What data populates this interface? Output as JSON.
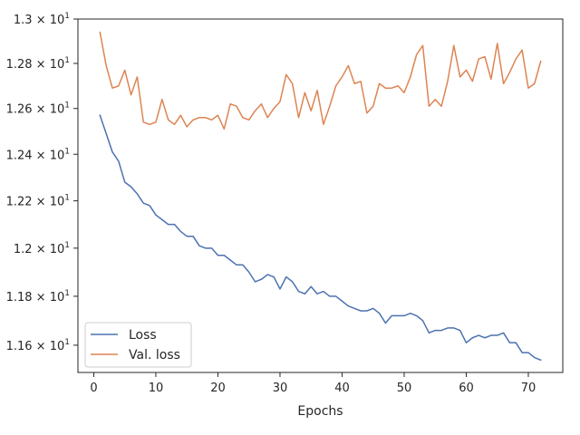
{
  "chart_data": {
    "type": "line",
    "title": "",
    "xlabel": "Epochs",
    "ylabel": "",
    "yscale": "log",
    "xlim": [
      -2.55,
      75.55
    ],
    "ylim": [
      11.49,
      13.0
    ],
    "grid": false,
    "legend_placement": "lower-left",
    "x_ticks": [
      0,
      10,
      20,
      30,
      40,
      50,
      60,
      70
    ],
    "x_tick_labels": [
      "0",
      "10",
      "20",
      "30",
      "40",
      "50",
      "60",
      "70"
    ],
    "y_ticks": [
      {
        "value": 11.6,
        "mantissa": "1.16"
      },
      {
        "value": 11.8,
        "mantissa": "1.18"
      },
      {
        "value": 12.0,
        "mantissa": "1.2"
      },
      {
        "value": 12.2,
        "mantissa": "1.22"
      },
      {
        "value": 12.4,
        "mantissa": "1.24"
      },
      {
        "value": 12.6,
        "mantissa": "1.26"
      },
      {
        "value": 12.8,
        "mantissa": "1.28"
      },
      {
        "value": 13.0,
        "mantissa": "1.3"
      }
    ],
    "y_tick_multiplier": "× 10",
    "y_tick_exponent": "1",
    "x": [
      1,
      2,
      3,
      4,
      5,
      6,
      7,
      8,
      9,
      10,
      11,
      12,
      13,
      14,
      15,
      16,
      17,
      18,
      19,
      20,
      21,
      22,
      23,
      24,
      25,
      26,
      27,
      28,
      29,
      30,
      31,
      32,
      33,
      34,
      35,
      36,
      37,
      38,
      39,
      40,
      41,
      42,
      43,
      44,
      45,
      46,
      47,
      48,
      49,
      50,
      51,
      52,
      53,
      54,
      55,
      56,
      57,
      58,
      59,
      60,
      61,
      62,
      63,
      64,
      65,
      66,
      67,
      68,
      69,
      70,
      71,
      72
    ],
    "series": [
      {
        "name": "Loss",
        "color": "#4c72b0",
        "values": [
          12.57,
          12.49,
          12.41,
          12.37,
          12.28,
          12.26,
          12.23,
          12.19,
          12.18,
          12.14,
          12.12,
          12.1,
          12.1,
          12.07,
          12.05,
          12.05,
          12.01,
          12.0,
          12.0,
          11.97,
          11.97,
          11.95,
          11.93,
          11.93,
          11.9,
          11.86,
          11.87,
          11.89,
          11.88,
          11.83,
          11.88,
          11.86,
          11.82,
          11.81,
          11.84,
          11.81,
          11.82,
          11.8,
          11.8,
          11.78,
          11.76,
          11.75,
          11.74,
          11.74,
          11.75,
          11.73,
          11.69,
          11.72,
          11.72,
          11.72,
          11.73,
          11.72,
          11.7,
          11.65,
          11.66,
          11.66,
          11.67,
          11.67,
          11.66,
          11.61,
          11.63,
          11.64,
          11.63,
          11.64,
          11.64,
          11.65,
          11.61,
          11.61,
          11.57,
          11.57,
          11.55,
          11.54
        ]
      },
      {
        "name": "Val. loss",
        "color": "#dd8452",
        "values": [
          12.94,
          12.79,
          12.69,
          12.7,
          12.77,
          12.66,
          12.74,
          12.54,
          12.53,
          12.54,
          12.64,
          12.55,
          12.53,
          12.57,
          12.52,
          12.55,
          12.56,
          12.56,
          12.55,
          12.57,
          12.51,
          12.62,
          12.61,
          12.56,
          12.55,
          12.59,
          12.62,
          12.56,
          12.6,
          12.63,
          12.75,
          12.71,
          12.56,
          12.67,
          12.59,
          12.68,
          12.53,
          12.61,
          12.7,
          12.74,
          12.79,
          12.71,
          12.72,
          12.58,
          12.61,
          12.71,
          12.69,
          12.69,
          12.7,
          12.67,
          12.74,
          12.84,
          12.88,
          12.61,
          12.64,
          12.61,
          12.72,
          12.88,
          12.74,
          12.77,
          12.72,
          12.82,
          12.83,
          12.73,
          12.89,
          12.71,
          12.76,
          12.82,
          12.86,
          12.69,
          12.71,
          12.81
        ]
      }
    ]
  }
}
